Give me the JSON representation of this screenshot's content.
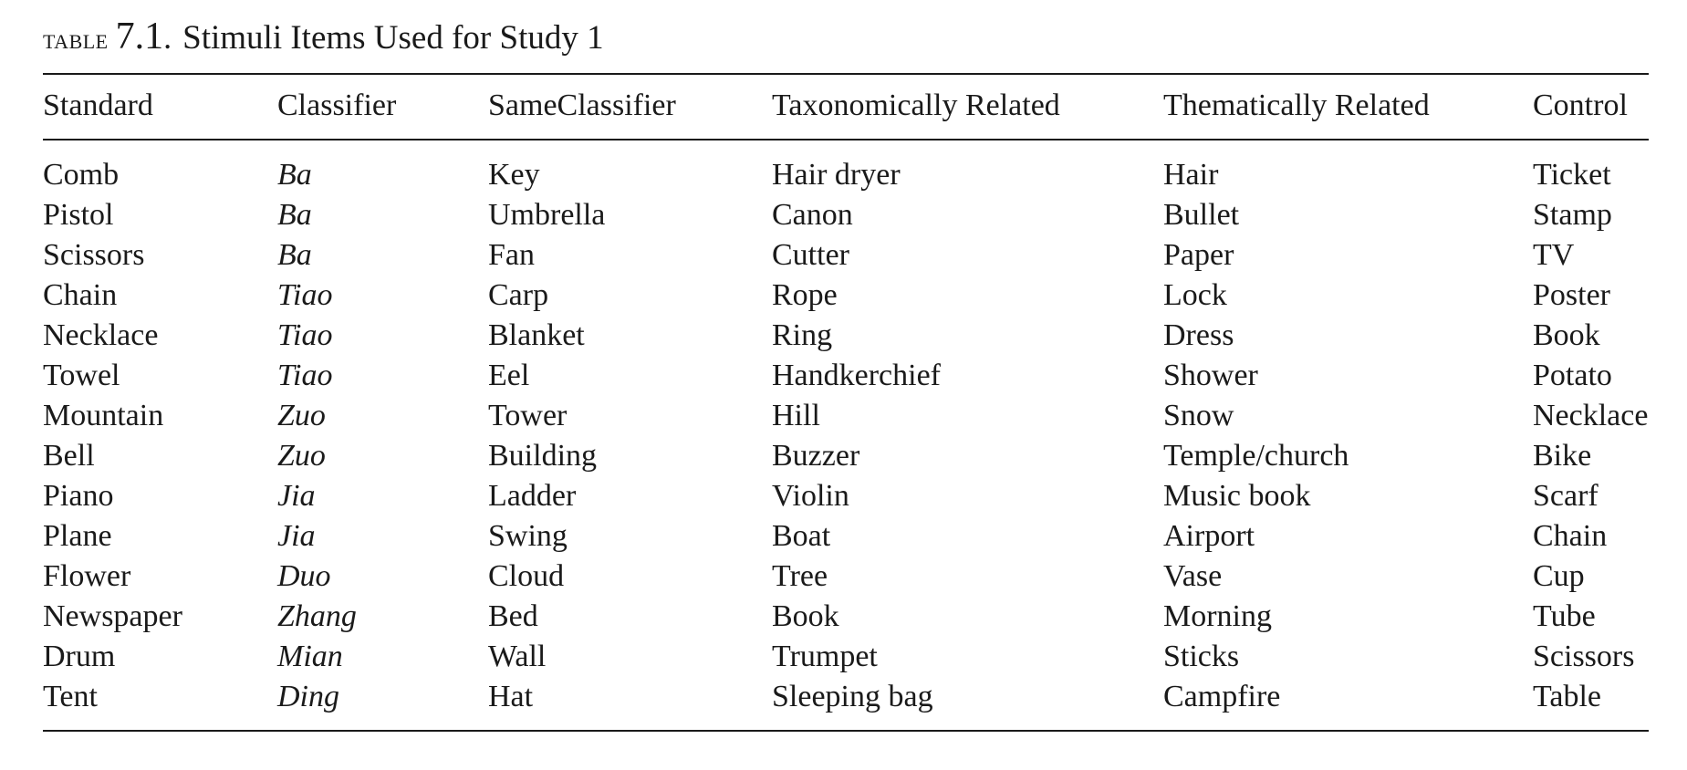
{
  "caption": {
    "label": "TABLE",
    "number": "7.1",
    "separator": ".",
    "title": "Stimuli  Items Used for Study 1"
  },
  "columns": [
    "Standard",
    "Classifier",
    "SameClassifier",
    "Taxonomically Related",
    "Thematically Related",
    "Control"
  ],
  "rows": [
    [
      "Comb",
      "Ba",
      "Key",
      "Hair dryer",
      "Hair",
      "Ticket"
    ],
    [
      "Pistol",
      "Ba",
      "Umbrella",
      "Canon",
      "Bullet",
      "Stamp"
    ],
    [
      "Scissors",
      "Ba",
      "Fan",
      "Cutter",
      "Paper",
      "TV"
    ],
    [
      "Chain",
      "Tiao",
      "Carp",
      "Rope",
      "Lock",
      "Poster"
    ],
    [
      "Necklace",
      "Tiao",
      "Blanket",
      "Ring",
      "Dress",
      "Book"
    ],
    [
      "Towel",
      "Tiao",
      "Eel",
      "Handkerchief",
      "Shower",
      "Potato"
    ],
    [
      "Mountain",
      "Zuo",
      "Tower",
      "Hill",
      "Snow",
      "Necklace"
    ],
    [
      "Bell",
      "Zuo",
      "Building",
      "Buzzer",
      "Temple/church",
      "Bike"
    ],
    [
      "Piano",
      "Jia",
      "Ladder",
      "Violin",
      "Music book",
      "Scarf"
    ],
    [
      "Plane",
      "Jia",
      "Swing",
      "Boat",
      "Airport",
      "Chain"
    ],
    [
      "Flower",
      "Duo",
      "Cloud",
      "Tree",
      "Vase",
      "Cup"
    ],
    [
      "Newspaper",
      "Zhang",
      "Bed",
      "Book",
      "Morning",
      "Tube"
    ],
    [
      "Drum",
      "Mian",
      "Wall",
      "Trumpet",
      "Sticks",
      "Scissors"
    ],
    [
      "Tent",
      "Ding",
      "Hat",
      "Sleeping bag",
      "Campfire",
      "Table"
    ]
  ]
}
